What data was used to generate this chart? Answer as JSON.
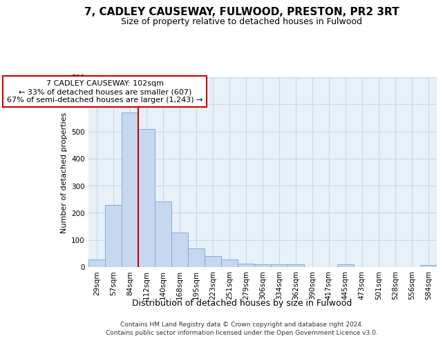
{
  "title1": "7, CADLEY CAUSEWAY, FULWOOD, PRESTON, PR2 3RT",
  "title2": "Size of property relative to detached houses in Fulwood",
  "xlabel": "Distribution of detached houses by size in Fulwood",
  "ylabel": "Number of detached properties",
  "footer": "Contains HM Land Registry data © Crown copyright and database right 2024.\nContains public sector information licensed under the Open Government Licence v3.0.",
  "categories": [
    "29sqm",
    "57sqm",
    "84sqm",
    "112sqm",
    "140sqm",
    "168sqm",
    "195sqm",
    "223sqm",
    "251sqm",
    "279sqm",
    "306sqm",
    "334sqm",
    "362sqm",
    "390sqm",
    "417sqm",
    "445sqm",
    "473sqm",
    "501sqm",
    "528sqm",
    "556sqm",
    "584sqm"
  ],
  "values": [
    28,
    230,
    570,
    510,
    243,
    127,
    70,
    42,
    27,
    14,
    10,
    10,
    10,
    0,
    0,
    10,
    0,
    0,
    0,
    0,
    8
  ],
  "bar_color": "#c5d8f0",
  "bar_edge_color": "#7aaed6",
  "grid_color": "#c8d8ec",
  "background_color": "#e8f0f8",
  "vline_color": "#cc0000",
  "vline_x": 2.5,
  "annotation_line1": "7 CADLEY CAUSEWAY: 102sqm",
  "annotation_line2": "← 33% of detached houses are smaller (607)",
  "annotation_line3": "67% of semi-detached houses are larger (1,243) →",
  "annotation_box_facecolor": "white",
  "annotation_box_edgecolor": "#cc0000",
  "ylim": [
    0,
    700
  ],
  "yticks": [
    0,
    100,
    200,
    300,
    400,
    500,
    600,
    700
  ],
  "title1_fontsize": 11,
  "title2_fontsize": 9,
  "ylabel_fontsize": 8,
  "xlabel_fontsize": 9,
  "tick_fontsize": 7.5,
  "footer_fontsize": 6.5
}
